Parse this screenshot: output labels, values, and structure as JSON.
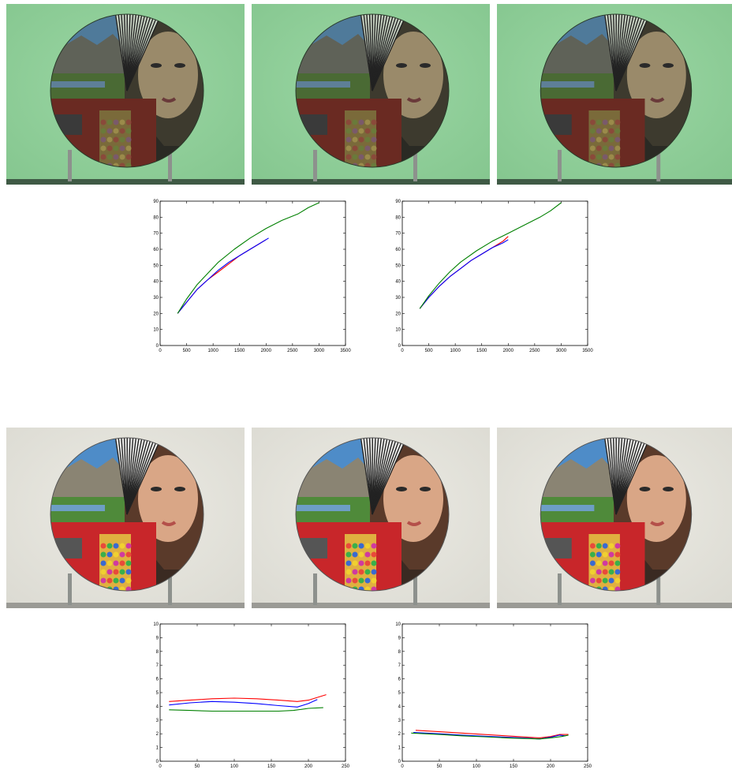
{
  "photos": [
    {
      "row": 0,
      "items": [
        {
          "scene": "test-chart-disc-green-backdrop"
        },
        {
          "scene": "test-chart-disc-green-backdrop"
        },
        {
          "scene": "test-chart-disc-green-backdrop"
        }
      ],
      "background": "#86c790"
    },
    {
      "row": 1,
      "items": [
        {
          "scene": "test-chart-disc-neutral-backdrop"
        },
        {
          "scene": "test-chart-disc-neutral-backdrop"
        },
        {
          "scene": "test-chart-disc-neutral-backdrop"
        }
      ],
      "background": "#dcdbd3"
    }
  ],
  "chart_data": [
    {
      "type": "line",
      "xlim": [
        0,
        3500
      ],
      "ylim": [
        0,
        90
      ],
      "xticks": [
        0,
        500,
        1000,
        1500,
        2000,
        2500,
        3000,
        3500
      ],
      "yticks": [
        0,
        10,
        20,
        30,
        40,
        50,
        60,
        70,
        80,
        90
      ],
      "series": [
        {
          "color": "#ff0000",
          "x": [
            330,
            500,
            700,
            900,
            1100,
            1300,
            1500,
            1700,
            1900,
            2000
          ],
          "y": [
            20,
            27,
            35,
            41,
            46,
            51,
            56,
            60,
            64,
            66
          ]
        },
        {
          "color": "#0000ff",
          "x": [
            330,
            500,
            700,
            900,
            1100,
            1300,
            1500,
            1700,
            1900,
            2050
          ],
          "y": [
            20,
            27,
            35,
            41,
            47,
            52,
            56,
            60,
            64,
            67
          ]
        },
        {
          "color": "#008000",
          "x": [
            330,
            500,
            700,
            900,
            1100,
            1400,
            1700,
            2000,
            2300,
            2600,
            2800,
            3000
          ],
          "y": [
            20,
            29,
            38,
            45,
            52,
            60,
            67,
            73,
            78,
            82,
            86,
            89
          ]
        }
      ]
    },
    {
      "type": "line",
      "xlim": [
        0,
        3500
      ],
      "ylim": [
        0,
        90
      ],
      "xticks": [
        0,
        500,
        1000,
        1500,
        2000,
        2500,
        3000,
        3500
      ],
      "yticks": [
        0,
        10,
        20,
        30,
        40,
        50,
        60,
        70,
        80,
        90
      ],
      "series": [
        {
          "color": "#ff0000",
          "x": [
            330,
            500,
            700,
            900,
            1100,
            1300,
            1500,
            1700,
            1900,
            2000
          ],
          "y": [
            23,
            30,
            37,
            43,
            48,
            53,
            57,
            61,
            65,
            68
          ]
        },
        {
          "color": "#0000ff",
          "x": [
            330,
            500,
            700,
            900,
            1100,
            1300,
            1500,
            1700,
            1900,
            2000
          ],
          "y": [
            23,
            30,
            37,
            43,
            48,
            53,
            57,
            61,
            64,
            66
          ]
        },
        {
          "color": "#008000",
          "x": [
            330,
            500,
            700,
            900,
            1100,
            1400,
            1700,
            2000,
            2300,
            2600,
            2800,
            3000
          ],
          "y": [
            23,
            31,
            39,
            46,
            52,
            59,
            65,
            70,
            75,
            80,
            84,
            89
          ]
        }
      ]
    },
    {
      "type": "line",
      "xlim": [
        0,
        250
      ],
      "ylim": [
        0,
        10
      ],
      "xticks": [
        0,
        50,
        100,
        150,
        200,
        250
      ],
      "yticks": [
        0,
        1,
        2,
        3,
        4,
        5,
        6,
        7,
        8,
        9,
        10
      ],
      "series": [
        {
          "color": "#ff0000",
          "x": [
            12,
            40,
            70,
            100,
            130,
            160,
            185,
            200,
            212,
            224
          ],
          "y": [
            4.35,
            4.45,
            4.55,
            4.6,
            4.55,
            4.45,
            4.35,
            4.45,
            4.65,
            4.85
          ]
        },
        {
          "color": "#0000ff",
          "x": [
            12,
            40,
            70,
            100,
            130,
            160,
            185,
            200,
            212
          ],
          "y": [
            4.1,
            4.25,
            4.35,
            4.3,
            4.2,
            4.05,
            3.95,
            4.2,
            4.5
          ]
        },
        {
          "color": "#008000",
          "x": [
            12,
            40,
            70,
            100,
            130,
            160,
            180,
            200,
            220
          ],
          "y": [
            3.75,
            3.7,
            3.65,
            3.65,
            3.65,
            3.65,
            3.7,
            3.85,
            3.9
          ]
        }
      ]
    },
    {
      "type": "line",
      "xlim": [
        0,
        250
      ],
      "ylim": [
        0,
        10
      ],
      "xticks": [
        0,
        50,
        100,
        150,
        200,
        250
      ],
      "yticks": [
        0,
        1,
        2,
        3,
        4,
        5,
        6,
        7,
        8,
        9,
        10
      ],
      "series": [
        {
          "color": "#ff0000",
          "x": [
            18,
            50,
            80,
            110,
            140,
            170,
            185,
            200,
            212,
            224
          ],
          "y": [
            2.25,
            2.15,
            2.05,
            1.95,
            1.85,
            1.75,
            1.7,
            1.8,
            1.95,
            1.95
          ]
        },
        {
          "color": "#0000ff",
          "x": [
            15,
            50,
            80,
            110,
            140,
            170,
            185,
            200,
            212,
            220
          ],
          "y": [
            2.1,
            2.0,
            1.9,
            1.82,
            1.75,
            1.68,
            1.62,
            1.75,
            1.9,
            1.85
          ]
        },
        {
          "color": "#008000",
          "x": [
            12,
            50,
            80,
            110,
            140,
            170,
            185,
            200,
            215,
            224
          ],
          "y": [
            2.05,
            1.95,
            1.85,
            1.78,
            1.7,
            1.65,
            1.62,
            1.7,
            1.8,
            1.9
          ]
        }
      ]
    }
  ]
}
